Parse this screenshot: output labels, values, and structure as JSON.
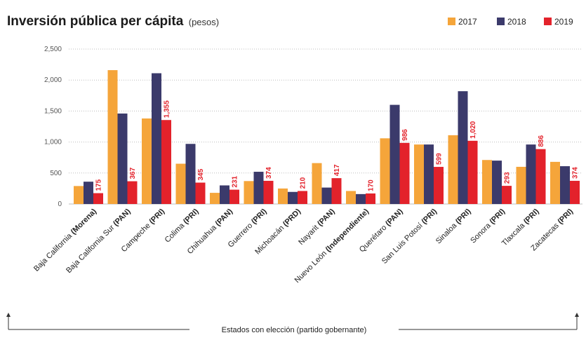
{
  "chart_data": {
    "type": "bar",
    "title": "Inversión pública per cápita",
    "title_unit": "(pesos)",
    "xlabel": "Estados con elección (partido gobernante)",
    "ylim": [
      0,
      2500
    ],
    "y_ticks": [
      "0",
      "500",
      "1,000",
      "1,500",
      "2,000",
      "2,500"
    ],
    "grid": true,
    "legend_position": "top-right",
    "categories": [
      {
        "state": "Baja California",
        "party": "(Morena)"
      },
      {
        "state": "Baja California Sur",
        "party": "(PAN)"
      },
      {
        "state": "Campeche",
        "party": "(PRI)"
      },
      {
        "state": "Colima",
        "party": "(PRI)"
      },
      {
        "state": "Chihuahua",
        "party": "(PAN)"
      },
      {
        "state": "Guerrero",
        "party": "(PRI)"
      },
      {
        "state": "Michoacán",
        "party": "(PRD)"
      },
      {
        "state": "Nayarit",
        "party": "(PAN)"
      },
      {
        "state": "Nuevo León",
        "party": "(Independiente)"
      },
      {
        "state": "Querétaro",
        "party": "(PAN)"
      },
      {
        "state": "San Luis Potosí",
        "party": "(PRI)"
      },
      {
        "state": "Sinaloa",
        "party": "(PRI)"
      },
      {
        "state": "Sonora",
        "party": "(PRI)"
      },
      {
        "state": "Tlaxcala",
        "party": "(PRI)"
      },
      {
        "state": "Zacatecas",
        "party": "(PRI)"
      }
    ],
    "series": [
      {
        "name": "2017",
        "color": "#f5a53a",
        "values": [
          290,
          2160,
          1380,
          650,
          180,
          370,
          250,
          660,
          210,
          1060,
          960,
          1110,
          710,
          600,
          680
        ]
      },
      {
        "name": "2018",
        "color": "#3b3a6b",
        "values": [
          360,
          1460,
          2110,
          970,
          300,
          520,
          195,
          265,
          160,
          1600,
          960,
          1820,
          700,
          960,
          610
        ]
      },
      {
        "name": "2019",
        "color": "#e3222b",
        "values": [
          175,
          367,
          1355,
          345,
          231,
          374,
          210,
          417,
          170,
          986,
          599,
          1020,
          293,
          886,
          374
        ],
        "labels": [
          "175",
          "367",
          "1,355",
          "345",
          "231",
          "374",
          "210",
          "417",
          "170",
          "986",
          "599",
          "1,020",
          "293",
          "886",
          "374"
        ]
      }
    ]
  }
}
